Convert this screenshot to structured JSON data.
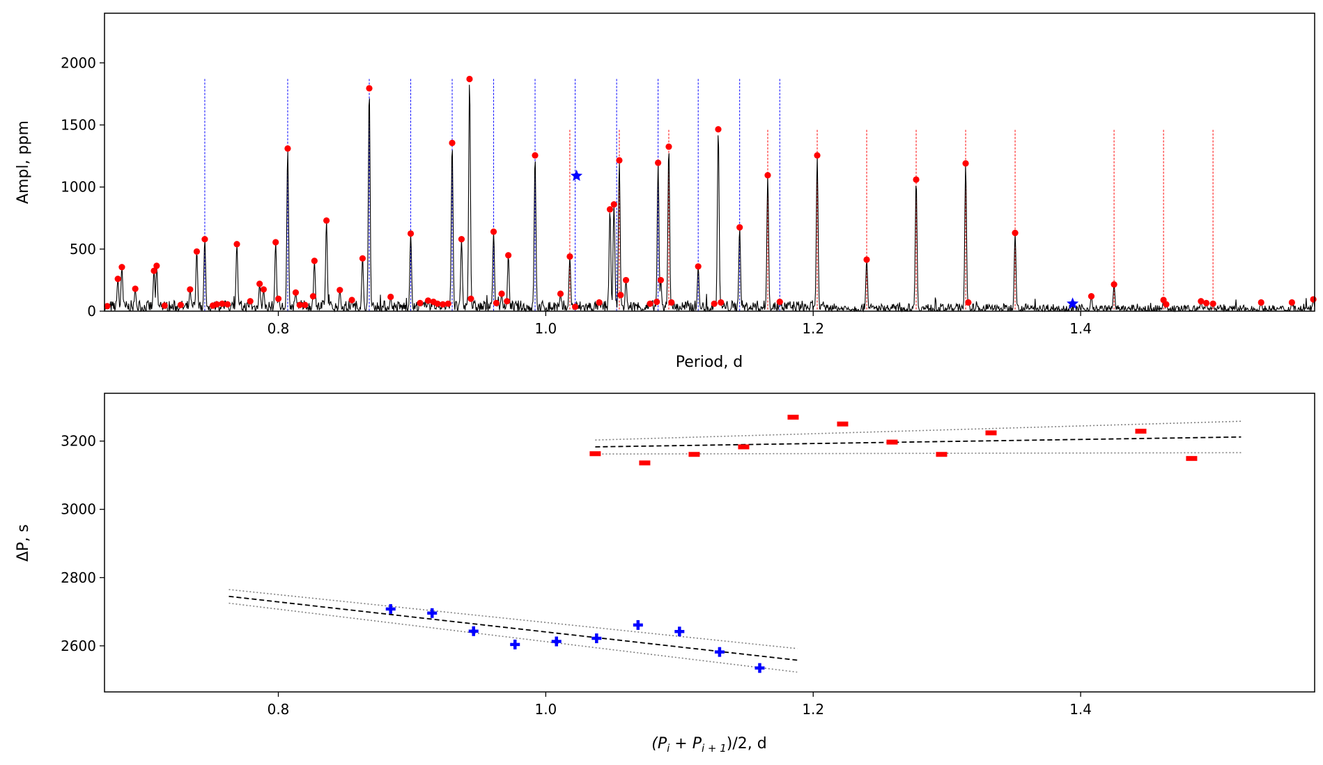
{
  "chart_data": [
    {
      "type": "line",
      "id": "spectrum",
      "xlabel": "Period, d",
      "ylabel": "Ampl, ppm",
      "xlim": [
        0.67,
        1.575
      ],
      "ylim": [
        0,
        2400
      ],
      "xticks": [
        0.8,
        1.0,
        1.2,
        1.4
      ],
      "xtick_labels": [
        "0.8",
        "1.0",
        "1.2",
        "1.4"
      ],
      "yticks": [
        0,
        500,
        1000,
        1500,
        2000
      ],
      "ytick_labels": [
        "0",
        "500",
        "1000",
        "1500",
        "2000"
      ],
      "colors": {
        "spectrum": "#000000",
        "peaks": "#ff0000",
        "blue": "#0000ff",
        "red": "#ff0000"
      },
      "blue_lines": {
        "top": 1870,
        "x": [
          0.745,
          0.807,
          0.868,
          0.899,
          0.93,
          0.961,
          0.992,
          1.022,
          1.053,
          1.084,
          1.114,
          1.145,
          1.175
        ]
      },
      "red_lines": {
        "top": 1460,
        "x": [
          1.018,
          1.055,
          1.092,
          1.166,
          1.203,
          1.24,
          1.277,
          1.314,
          1.351,
          1.425,
          1.462,
          1.499
        ]
      },
      "peaks": [
        [
          0.672,
          40
        ],
        [
          0.68,
          260
        ],
        [
          0.683,
          355
        ],
        [
          0.693,
          180
        ],
        [
          0.707,
          325
        ],
        [
          0.709,
          365
        ],
        [
          0.715,
          45
        ],
        [
          0.727,
          50
        ],
        [
          0.734,
          175
        ],
        [
          0.739,
          480
        ],
        [
          0.745,
          580
        ],
        [
          0.751,
          45
        ],
        [
          0.754,
          55
        ],
        [
          0.758,
          60
        ],
        [
          0.762,
          55
        ],
        [
          0.769,
          540
        ],
        [
          0.779,
          80
        ],
        [
          0.786,
          220
        ],
        [
          0.789,
          175
        ],
        [
          0.798,
          555
        ],
        [
          0.8,
          100
        ],
        [
          0.807,
          1310
        ],
        [
          0.813,
          150
        ],
        [
          0.816,
          50
        ],
        [
          0.82,
          50
        ],
        [
          0.826,
          120
        ],
        [
          0.827,
          405
        ],
        [
          0.836,
          730
        ],
        [
          0.846,
          170
        ],
        [
          0.855,
          90
        ],
        [
          0.863,
          425
        ],
        [
          0.868,
          1795
        ],
        [
          0.884,
          115
        ],
        [
          0.899,
          625
        ],
        [
          0.906,
          65
        ],
        [
          0.912,
          85
        ],
        [
          0.916,
          75
        ],
        [
          0.919,
          60
        ],
        [
          0.923,
          55
        ],
        [
          0.927,
          60
        ],
        [
          0.93,
          1355
        ],
        [
          0.937,
          580
        ],
        [
          0.943,
          1870
        ],
        [
          0.944,
          100
        ],
        [
          0.961,
          640
        ],
        [
          0.963,
          65
        ],
        [
          0.967,
          140
        ],
        [
          0.972,
          450
        ],
        [
          0.971,
          80
        ],
        [
          0.992,
          1255
        ],
        [
          1.011,
          140
        ],
        [
          1.018,
          440
        ],
        [
          1.022,
          35
        ],
        [
          1.04,
          70
        ],
        [
          1.048,
          820
        ],
        [
          1.051,
          860
        ],
        [
          1.055,
          1215
        ],
        [
          1.056,
          130
        ],
        [
          1.06,
          250
        ],
        [
          1.078,
          60
        ],
        [
          1.083,
          75
        ],
        [
          1.084,
          1195
        ],
        [
          1.086,
          250
        ],
        [
          1.092,
          1325
        ],
        [
          1.094,
          70
        ],
        [
          1.114,
          360
        ],
        [
          1.126,
          60
        ],
        [
          1.129,
          1465
        ],
        [
          1.131,
          70
        ],
        [
          1.145,
          675
        ],
        [
          1.166,
          1095
        ],
        [
          1.175,
          75
        ],
        [
          1.203,
          1255
        ],
        [
          1.24,
          415
        ],
        [
          1.277,
          1060
        ],
        [
          1.314,
          1190
        ],
        [
          1.316,
          70
        ],
        [
          1.351,
          630
        ],
        [
          1.408,
          120
        ],
        [
          1.425,
          215
        ],
        [
          1.462,
          90
        ],
        [
          1.464,
          55
        ],
        [
          1.49,
          80
        ],
        [
          1.494,
          65
        ],
        [
          1.499,
          60
        ],
        [
          1.535,
          70
        ],
        [
          1.558,
          70
        ],
        [
          1.574,
          95
        ]
      ],
      "star_points": [
        [
          1.023,
          1090
        ],
        [
          1.394,
          60
        ]
      ]
    },
    {
      "type": "scatter",
      "id": "period-spacing",
      "xlabel": "(P",
      "xlabel_sub1": "i",
      "xlabel_plus": " + P",
      "xlabel_sub2": "i + 1",
      "xlabel_tail": ")/2, d",
      "ylabel": "ΔP, s",
      "xlim": [
        0.67,
        1.575
      ],
      "ylim": [
        2465,
        3340
      ],
      "xticks": [
        0.8,
        1.0,
        1.2,
        1.4
      ],
      "xtick_labels": [
        "0.8",
        "1.0",
        "1.2",
        "1.4"
      ],
      "yticks": [
        2600,
        2800,
        3000,
        3200
      ],
      "ytick_labels": [
        "2600",
        "2800",
        "3000",
        "3200"
      ],
      "colors": {
        "blue": "#0000ff",
        "red": "#ff0000",
        "fit": "#000000",
        "band": "#808080"
      },
      "blue_points": [
        [
          0.884,
          2708
        ],
        [
          0.915,
          2696
        ],
        [
          0.946,
          2643
        ],
        [
          0.977,
          2604
        ],
        [
          1.008,
          2613
        ],
        [
          1.038,
          2622
        ],
        [
          1.069,
          2661
        ],
        [
          1.1,
          2642
        ],
        [
          1.13,
          2582
        ],
        [
          1.16,
          2535
        ]
      ],
      "red_points": [
        [
          1.037,
          3163
        ],
        [
          1.074,
          3136
        ],
        [
          1.111,
          3161
        ],
        [
          1.148,
          3183
        ],
        [
          1.185,
          3270
        ],
        [
          1.222,
          3250
        ],
        [
          1.259,
          3197
        ],
        [
          1.296,
          3161
        ],
        [
          1.333,
          3224
        ],
        [
          1.445,
          3229
        ],
        [
          1.483,
          3149
        ]
      ],
      "blue_fit": {
        "x": [
          0.763,
          1.188
        ],
        "y": [
          2745,
          2558
        ],
        "upper": [
          2765,
          2592
        ],
        "lower": [
          2725,
          2523
        ]
      },
      "red_fit": {
        "x": [
          1.037,
          1.52
        ],
        "y": [
          3183,
          3212
        ],
        "upper": [
          3203,
          3258
        ],
        "lower": [
          3162,
          3166
        ]
      }
    }
  ]
}
